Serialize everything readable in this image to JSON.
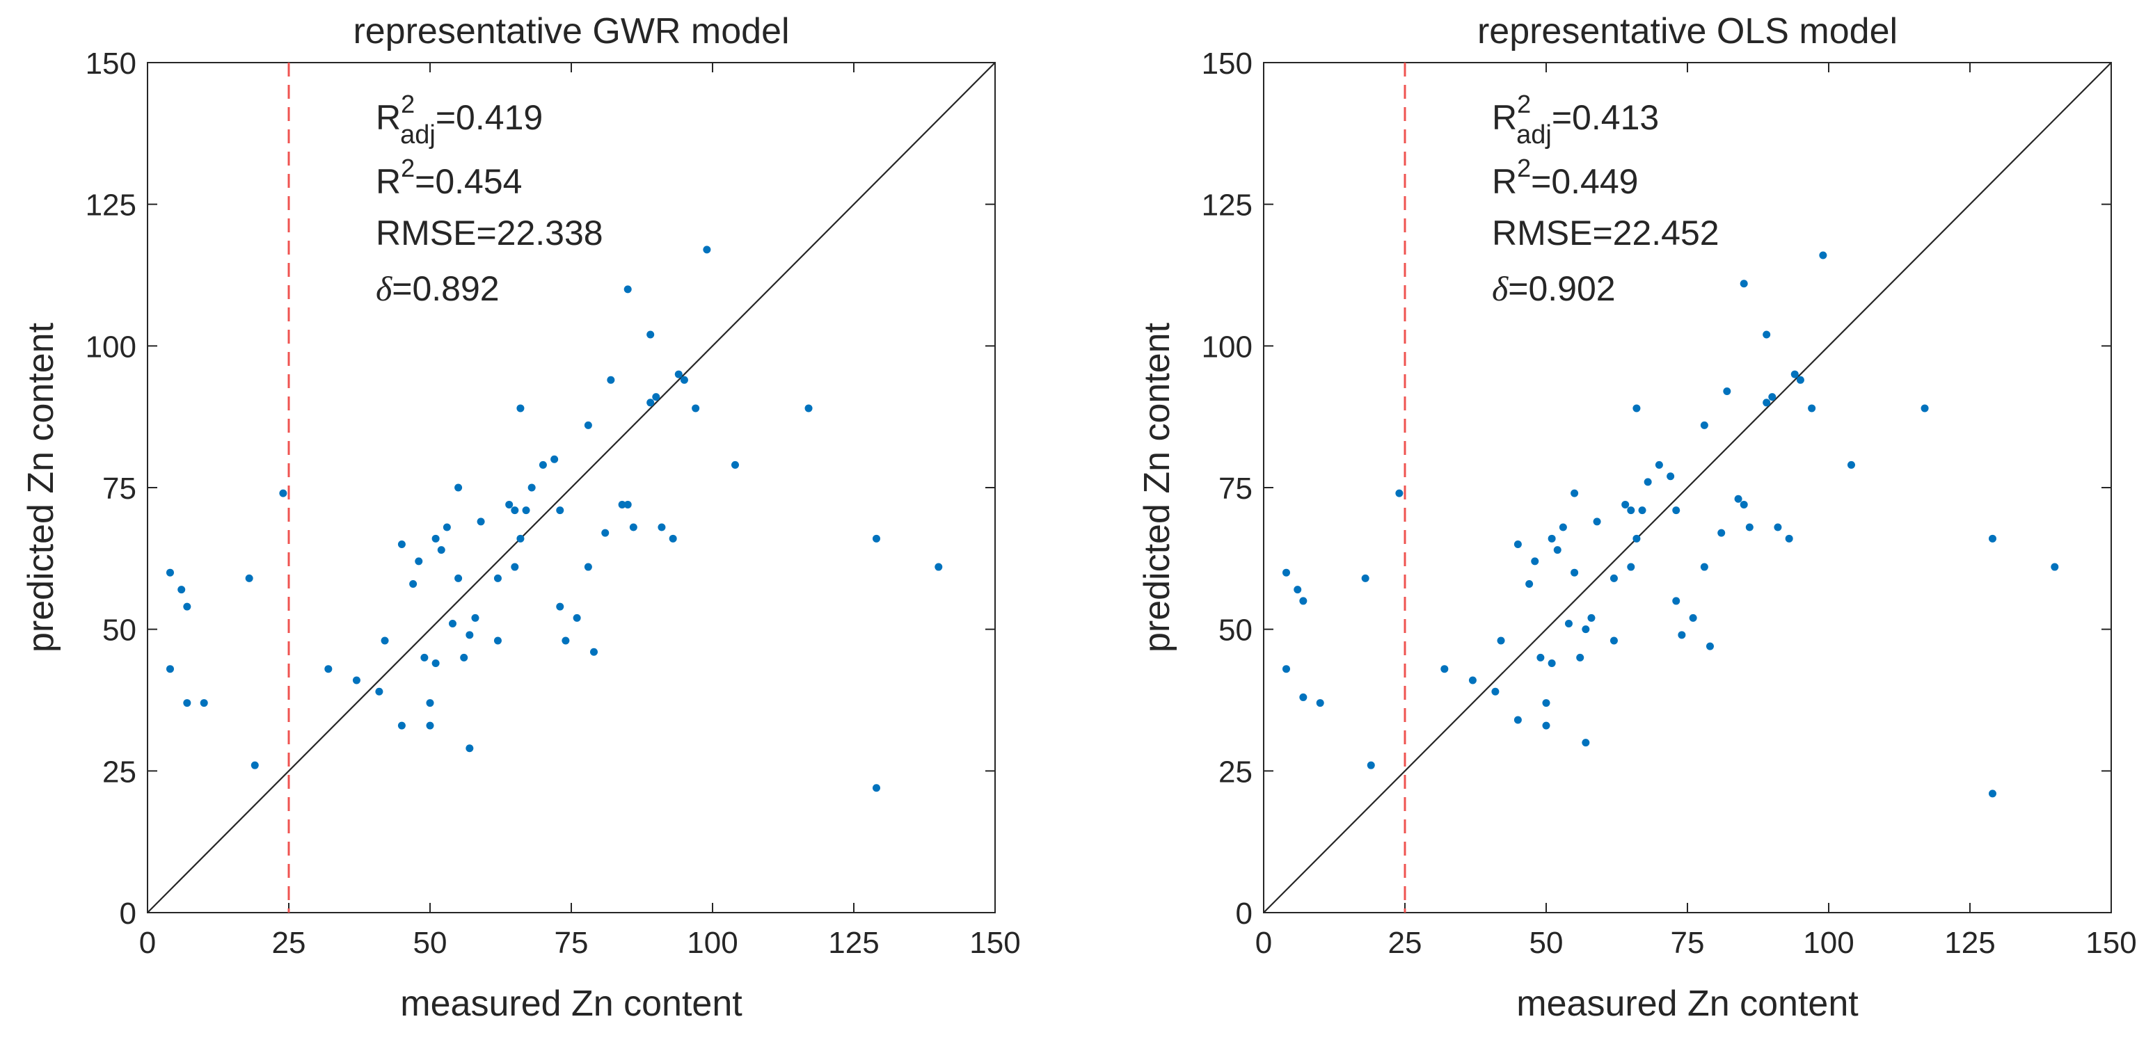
{
  "colors": {
    "point": "#0072BD",
    "threshold": "#EF5350",
    "identity": "#262626",
    "axis": "#262626",
    "background": "#ffffff"
  },
  "chart_data": [
    {
      "type": "scatter",
      "title": "representative GWR model",
      "xlabel": "measured Zn content",
      "ylabel": "predicted Zn content",
      "xlim": [
        0,
        150
      ],
      "ylim": [
        0,
        150
      ],
      "xticks": [
        "0",
        "25",
        "50",
        "75",
        "100",
        "125",
        "150"
      ],
      "yticks": [
        "0",
        "25",
        "50",
        "75",
        "100",
        "125",
        "150"
      ],
      "grid": false,
      "reference_lines": {
        "identity": "y = x",
        "threshold_x": 25
      },
      "annotations": {
        "r2adj_base": "R",
        "r2adj_sup": "2",
        "r2adj_sub": "adj",
        "r2adj_value": "=0.419",
        "r2_base": "R",
        "r2_sup": "2",
        "r2_value": "=0.454",
        "rmse": "RMSE=22.338",
        "delta_symbol": "δ",
        "delta_value": "=0.892"
      },
      "x": [
        4,
        4,
        6,
        7,
        7,
        10,
        18,
        19,
        24,
        32,
        37,
        41,
        42,
        45,
        45,
        47,
        48,
        49,
        50,
        50,
        51,
        51,
        52,
        53,
        54,
        55,
        55,
        56,
        57,
        57,
        58,
        59,
        62,
        62,
        64,
        65,
        65,
        66,
        66,
        67,
        68,
        70,
        72,
        73,
        73,
        74,
        76,
        78,
        78,
        79,
        81,
        82,
        84,
        85,
        85,
        86,
        89,
        89,
        90,
        91,
        93,
        94,
        95,
        97,
        99,
        104,
        117,
        129,
        129,
        140
      ],
      "y": [
        60,
        43,
        57,
        37,
        54,
        37,
        59,
        26,
        74,
        43,
        41,
        39,
        48,
        33,
        65,
        58,
        62,
        45,
        33,
        37,
        66,
        44,
        64,
        68,
        51,
        75,
        59,
        45,
        49,
        29,
        52,
        69,
        48,
        59,
        72,
        61,
        71,
        89,
        66,
        71,
        75,
        79,
        80,
        54,
        71,
        48,
        52,
        86,
        61,
        46,
        67,
        94,
        72,
        72,
        110,
        68,
        90,
        102,
        91,
        68,
        66,
        95,
        94,
        89,
        117,
        79,
        89,
        22,
        66,
        61
      ]
    },
    {
      "type": "scatter",
      "title": "representative OLS model",
      "xlabel": "measured Zn content",
      "ylabel": "predicted Zn content",
      "xlim": [
        0,
        150
      ],
      "ylim": [
        0,
        150
      ],
      "xticks": [
        "0",
        "25",
        "50",
        "75",
        "100",
        "125",
        "150"
      ],
      "yticks": [
        "0",
        "25",
        "50",
        "75",
        "100",
        "125",
        "150"
      ],
      "grid": false,
      "reference_lines": {
        "identity": "y = x",
        "threshold_x": 25
      },
      "annotations": {
        "r2adj_base": "R",
        "r2adj_sup": "2",
        "r2adj_sub": "adj",
        "r2adj_value": "=0.413",
        "r2_base": "R",
        "r2_sup": "2",
        "r2_value": "=0.449",
        "rmse": "RMSE=22.452",
        "delta_symbol": "δ",
        "delta_value": "=0.902"
      },
      "x": [
        4,
        4,
        6,
        7,
        7,
        10,
        18,
        19,
        24,
        32,
        37,
        41,
        42,
        45,
        45,
        47,
        48,
        49,
        50,
        50,
        51,
        51,
        52,
        53,
        54,
        55,
        55,
        56,
        57,
        57,
        58,
        59,
        62,
        62,
        64,
        65,
        65,
        66,
        66,
        67,
        68,
        70,
        72,
        73,
        73,
        74,
        76,
        78,
        78,
        79,
        81,
        82,
        84,
        85,
        85,
        86,
        89,
        89,
        90,
        91,
        93,
        94,
        95,
        97,
        99,
        104,
        117,
        129,
        129,
        140
      ],
      "y": [
        60,
        43,
        57,
        38,
        55,
        37,
        59,
        26,
        74,
        43,
        41,
        39,
        48,
        34,
        65,
        58,
        62,
        45,
        33,
        37,
        66,
        44,
        64,
        68,
        51,
        74,
        60,
        45,
        50,
        30,
        52,
        69,
        48,
        59,
        72,
        61,
        71,
        89,
        66,
        71,
        76,
        79,
        77,
        55,
        71,
        49,
        52,
        86,
        61,
        47,
        67,
        92,
        73,
        72,
        111,
        68,
        90,
        102,
        91,
        68,
        66,
        95,
        94,
        89,
        116,
        79,
        89,
        21,
        66,
        61
      ]
    }
  ]
}
